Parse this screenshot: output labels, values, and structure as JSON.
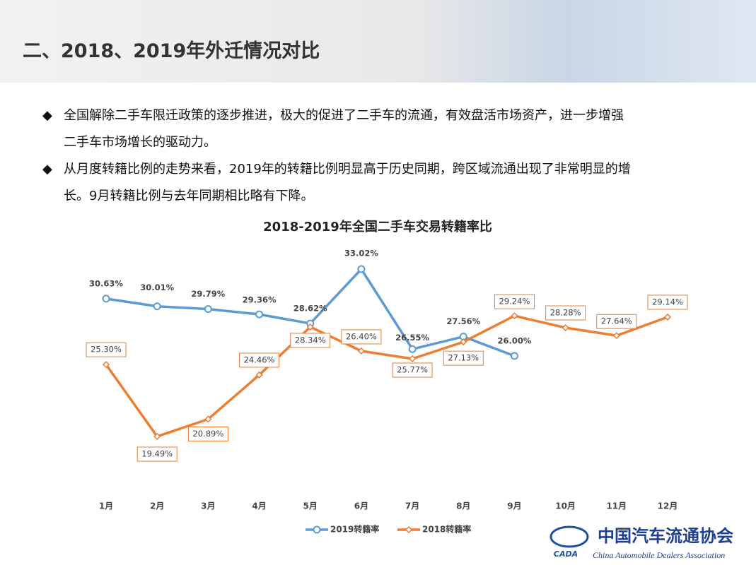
{
  "header": {
    "title": "二、2018、2019年外迁情况对比"
  },
  "bullets": [
    [
      "全国解除二手车限迁政策的逐步推进，极大的促进了二手车的流通，有效盘活市场资产，进一步增强",
      "二手车市场增长的驱动力。"
    ],
    [
      "从月度转籍比例的走势来看，2019年的转籍比例明显高于历史同期，跨区域流通出现了非常明显的增",
      "长。9月转籍比例与去年同期相比略有下降。"
    ]
  ],
  "chart_data": {
    "type": "line",
    "title": "2018-2019年全国二手车交易转籍率比",
    "categories": [
      "1月",
      "2月",
      "3月",
      "4月",
      "5月",
      "6月",
      "7月",
      "8月",
      "9月",
      "10月",
      "11月",
      "12月"
    ],
    "series": [
      {
        "name": "2019转籍率",
        "color": "#5b9bd5",
        "values": [
          30.63,
          30.01,
          29.79,
          29.36,
          28.62,
          33.02,
          26.55,
          27.56,
          26.0,
          null,
          null,
          null
        ],
        "value_labels": [
          "30.63%",
          "30.01%",
          "29.79%",
          "29.36%",
          "28.62%",
          "33.02%",
          "26.55%",
          "27.56%",
          "26.00%",
          null,
          null,
          null
        ]
      },
      {
        "name": "2018转籍率",
        "color": "#ed7d31",
        "values": [
          25.3,
          19.49,
          20.89,
          24.46,
          28.34,
          26.4,
          25.77,
          27.13,
          29.24,
          28.28,
          27.64,
          29.14
        ],
        "value_labels": [
          "25.30%",
          "19.49%",
          "20.89%",
          "24.46%",
          "28.34%",
          "26.40%",
          "25.77%",
          "27.13%",
          "29.24%",
          "28.28%",
          "27.64%",
          "29.14%"
        ]
      }
    ],
    "legend": "bottom"
  },
  "logo": {
    "cn": "中国汽车流通协会",
    "en": "China Automobile Dealers Association",
    "abbr": "CADA"
  }
}
